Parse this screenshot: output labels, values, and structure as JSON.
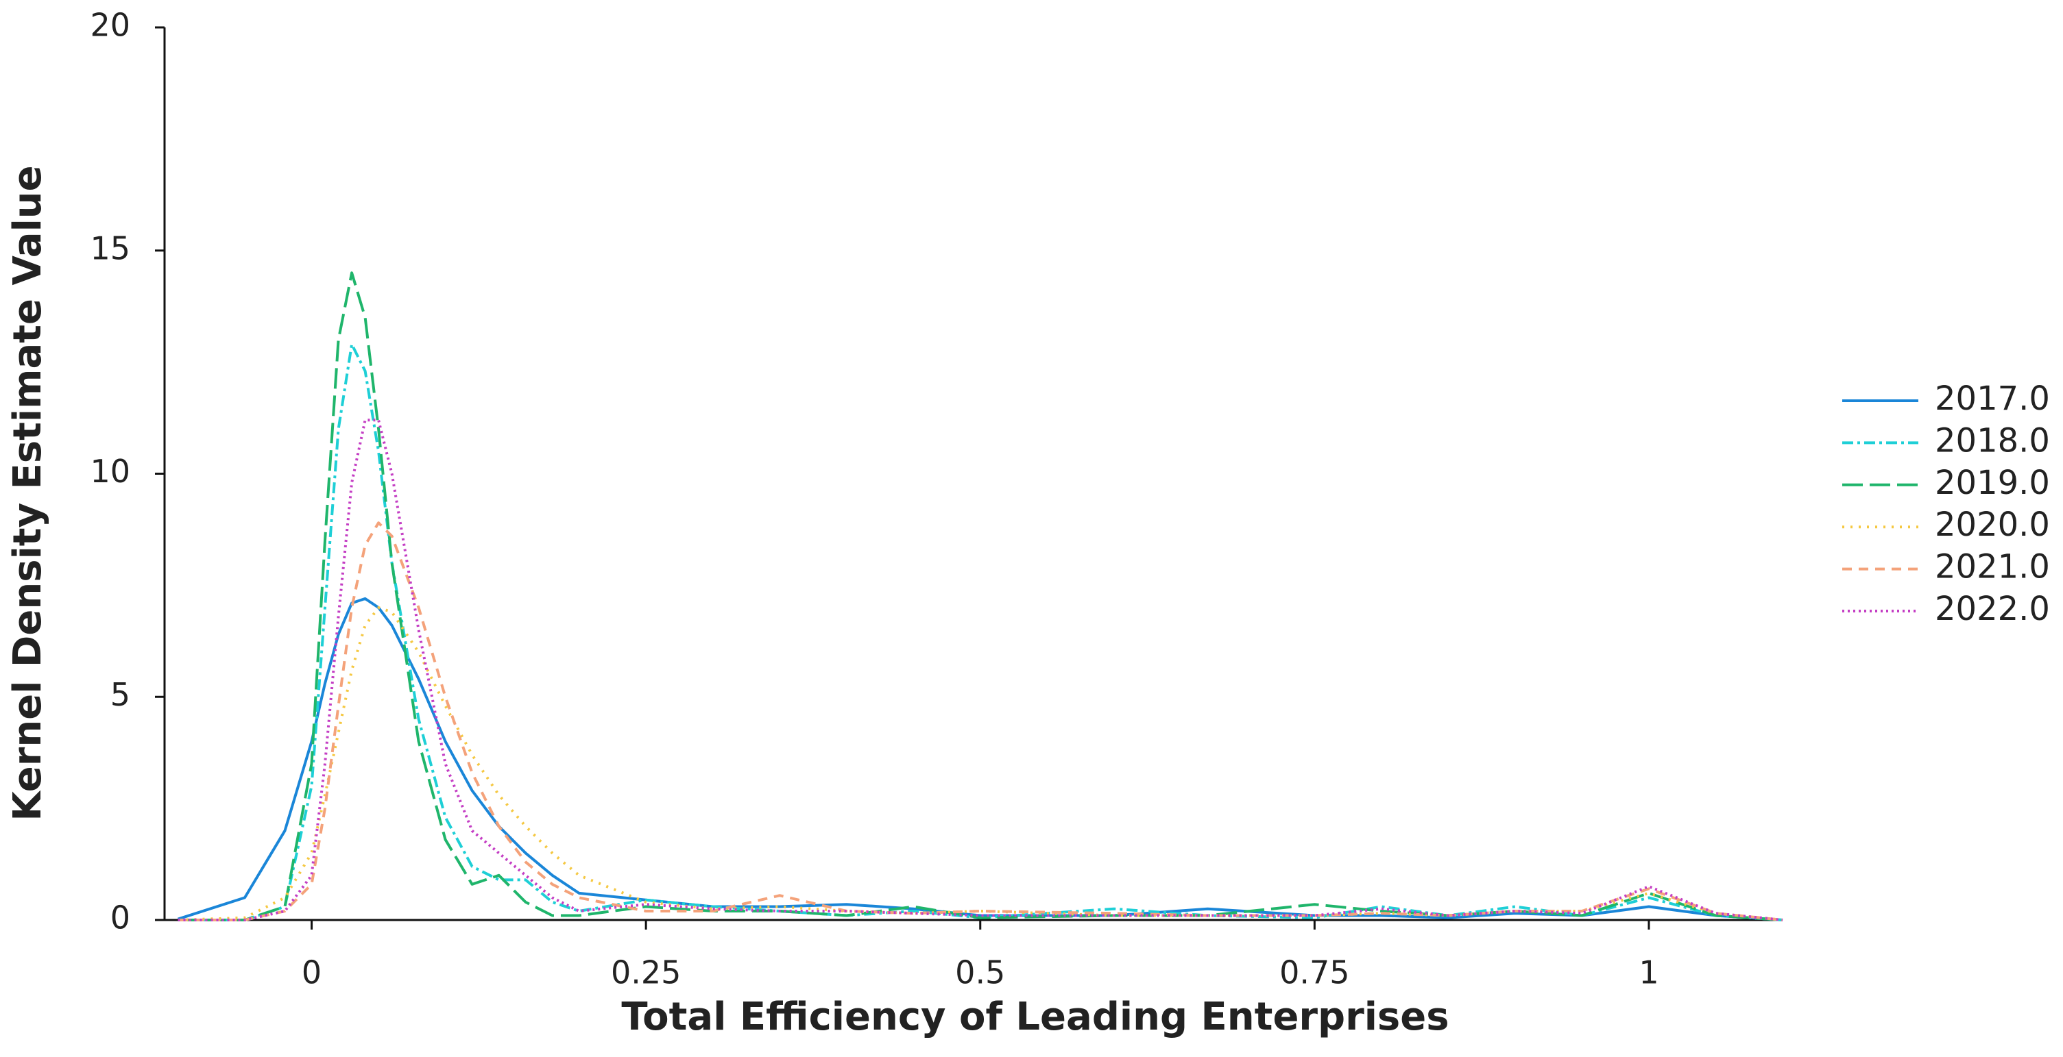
{
  "chart_data": {
    "type": "line",
    "x_label": "Total Efficiency of Leading Enterprises",
    "y_label": "Kernel Density Estimate Value",
    "x": [
      -0.1,
      -0.05,
      -0.02,
      0,
      0.01,
      0.02,
      0.03,
      0.04,
      0.05,
      0.06,
      0.08,
      0.1,
      0.12,
      0.14,
      0.16,
      0.18,
      0.2,
      0.25,
      0.3,
      0.35,
      0.4,
      0.45,
      0.5,
      0.6,
      0.67,
      0.75,
      0.8,
      0.85,
      0.9,
      0.95,
      1.0,
      1.05,
      1.1
    ],
    "series": [
      {
        "name": "2017.0",
        "color": "#1a86d8",
        "dash": "solid",
        "values": [
          0.02,
          0.5,
          2.0,
          4.0,
          5.3,
          6.4,
          7.1,
          7.2,
          7.0,
          6.6,
          5.4,
          4.0,
          2.9,
          2.1,
          1.5,
          1.0,
          0.6,
          0.45,
          0.3,
          0.3,
          0.35,
          0.25,
          0.1,
          0.1,
          0.25,
          0.1,
          0.1,
          0.05,
          0.15,
          0.1,
          0.3,
          0.1,
          0
        ]
      },
      {
        "name": "2018.0",
        "color": "#1ecfd6",
        "dash": "dashdot",
        "values": [
          0,
          0,
          0.3,
          3.0,
          7.0,
          11.0,
          12.9,
          12.3,
          10.5,
          8.0,
          4.5,
          2.3,
          1.2,
          0.9,
          0.9,
          0.4,
          0.2,
          0.45,
          0.3,
          0.2,
          0.1,
          0.2,
          0.05,
          0.25,
          0.1,
          0.05,
          0.3,
          0.1,
          0.3,
          0.1,
          0.5,
          0.1,
          0
        ]
      },
      {
        "name": "2019.0",
        "color": "#1fb56b",
        "dash": "longdash",
        "values": [
          0,
          0,
          0.3,
          3.5,
          8.5,
          13.0,
          14.5,
          13.5,
          11.0,
          8.0,
          4.0,
          1.8,
          0.8,
          1.0,
          0.4,
          0.1,
          0.1,
          0.3,
          0.2,
          0.2,
          0.1,
          0.3,
          0.05,
          0.1,
          0.1,
          0.35,
          0.2,
          0.1,
          0.2,
          0.1,
          0.6,
          0.1,
          0
        ]
      },
      {
        "name": "2020.0",
        "color": "#f5c842",
        "dash": "dotted",
        "values": [
          0,
          0.05,
          0.5,
          1.5,
          2.8,
          4.2,
          5.6,
          6.6,
          7.0,
          6.9,
          6.0,
          4.8,
          3.7,
          2.8,
          2.1,
          1.5,
          1.0,
          0.4,
          0.25,
          0.3,
          0.2,
          0.15,
          0.2,
          0.1,
          0.1,
          0.1,
          0.15,
          0.1,
          0.2,
          0.2,
          0.6,
          0.15,
          0
        ]
      },
      {
        "name": "2021.0",
        "color": "#f4a27a",
        "dash": "dashed",
        "values": [
          0,
          0,
          0.2,
          0.8,
          2.5,
          4.8,
          7.0,
          8.4,
          8.9,
          8.6,
          7.0,
          5.0,
          3.3,
          2.1,
          1.3,
          0.8,
          0.5,
          0.2,
          0.2,
          0.55,
          0.2,
          0.15,
          0.2,
          0.15,
          0.1,
          0.1,
          0.15,
          0.1,
          0.2,
          0.2,
          0.7,
          0.15,
          0
        ]
      },
      {
        "name": "2022.0",
        "color": "#c43ec4",
        "dash": "finedot",
        "values": [
          0,
          0,
          0.2,
          1.0,
          3.5,
          6.8,
          9.8,
          11.2,
          11.2,
          10.0,
          6.5,
          3.5,
          2.0,
          1.5,
          1.0,
          0.5,
          0.2,
          0.35,
          0.25,
          0.2,
          0.2,
          0.15,
          0.1,
          0.1,
          0.1,
          0.1,
          0.25,
          0.1,
          0.2,
          0.15,
          0.75,
          0.15,
          0
        ]
      }
    ],
    "xlim": [
      -0.11,
      1.1
    ],
    "ylim": [
      0,
      20
    ],
    "xticks": [
      0,
      0.25,
      0.5,
      0.75,
      1
    ],
    "yticks": [
      0,
      5,
      10,
      15,
      20
    ],
    "legend": "right"
  }
}
